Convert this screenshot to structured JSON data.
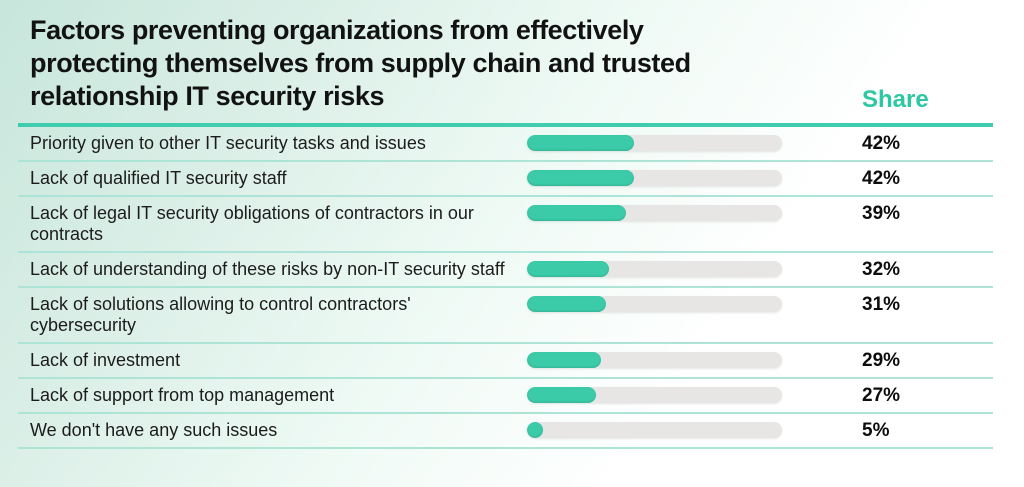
{
  "header": {
    "title": "Factors preventing organizations from effectively protecting themselves from supply chain and trusted relationship IT security risks",
    "share_label": "Share"
  },
  "rows": [
    {
      "label": "Priority given to other IT security tasks and issues",
      "value": 42,
      "display": "42%"
    },
    {
      "label": "Lack of qualified IT security staff",
      "value": 42,
      "display": "42%"
    },
    {
      "label": "Lack of legal IT security obligations of contractors in our contracts",
      "value": 39,
      "display": "39%"
    },
    {
      "label": "Lack of understanding of these risks by non-IT security staff",
      "value": 32,
      "display": "32%"
    },
    {
      "label": "Lack of solutions allowing to control contractors' cybersecurity",
      "value": 31,
      "display": "31%"
    },
    {
      "label": "Lack of investment",
      "value": 29,
      "display": "29%"
    },
    {
      "label": "Lack of support from top management",
      "value": 27,
      "display": "27%"
    },
    {
      "label": "We don't have any such issues",
      "value": 5,
      "display": "5%"
    }
  ],
  "chart_data": {
    "type": "bar",
    "orientation": "horizontal",
    "title": "Factors preventing organizations from effectively protecting themselves from supply chain and trusted relationship IT security risks",
    "value_column_header": "Share",
    "categories": [
      "Priority given to other IT security tasks and issues",
      "Lack of qualified IT security staff",
      "Lack of legal IT security obligations of contractors in our contracts",
      "Lack of understanding of these risks by non-IT security staff",
      "Lack of solutions allowing to control contractors' cybersecurity",
      "Lack of investment",
      "Lack of support from top management",
      "We don't have any such issues"
    ],
    "values": [
      42,
      42,
      39,
      32,
      31,
      29,
      27,
      5
    ],
    "value_labels": [
      "42%",
      "42%",
      "39%",
      "32%",
      "31%",
      "29%",
      "27%",
      "5%"
    ],
    "value_suffix": "%",
    "xlim": [
      0,
      100
    ],
    "grid": false,
    "legend": false,
    "colors": {
      "bar_fill": "#3bcba8",
      "bar_track": "#e7e6e4",
      "accent_line": "#3fcdad",
      "row_separator": "#aee4d5",
      "share_header_text": "#2cc8a3",
      "title_text": "#121212",
      "value_text": "#0d0d0d",
      "background_top_left": "#c7e6db",
      "background_bottom_right": "#ffffff"
    }
  }
}
